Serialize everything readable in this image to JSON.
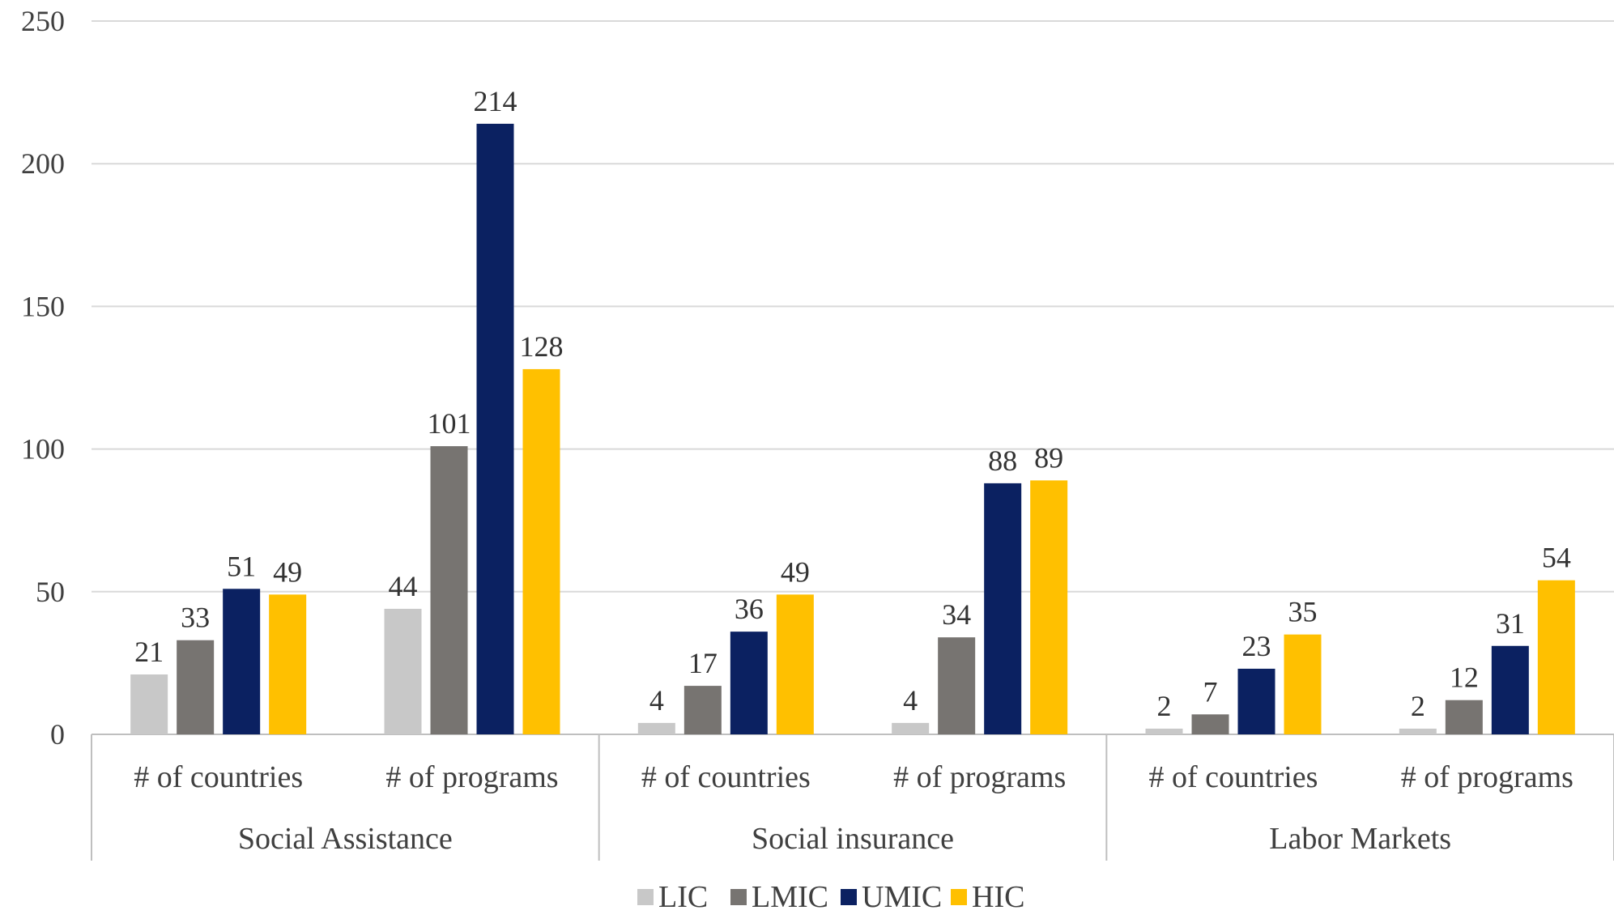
{
  "chart_data": {
    "type": "bar",
    "groups": [
      {
        "label": "Social Assistance",
        "categories": [
          "# of countries",
          "# of programs"
        ]
      },
      {
        "label": "Social insurance",
        "categories": [
          "# of countries",
          "# of programs"
        ]
      },
      {
        "label": "Labor Markets",
        "categories": [
          "# of countries",
          "# of programs"
        ]
      }
    ],
    "categories": [
      "# of countries",
      "# of programs",
      "# of countries",
      "# of programs",
      "# of countries",
      "# of programs"
    ],
    "series": [
      {
        "name": "LIC",
        "color": "#c8c8c8",
        "values": [
          21,
          44,
          4,
          4,
          2,
          2
        ]
      },
      {
        "name": "LMIC",
        "color": "#777471",
        "values": [
          33,
          101,
          17,
          34,
          7,
          12
        ]
      },
      {
        "name": "UMIC",
        "color": "#0b2161",
        "values": [
          51,
          214,
          36,
          88,
          23,
          31
        ]
      },
      {
        "name": "HIC",
        "color": "#ffc000",
        "values": [
          49,
          128,
          49,
          89,
          35,
          54
        ]
      }
    ],
    "ylim": [
      0,
      250
    ],
    "yticks": [
      0,
      50,
      100,
      150,
      200,
      250
    ],
    "grid": true,
    "legend": "bottom",
    "title": "",
    "xlabel": "",
    "ylabel": ""
  }
}
